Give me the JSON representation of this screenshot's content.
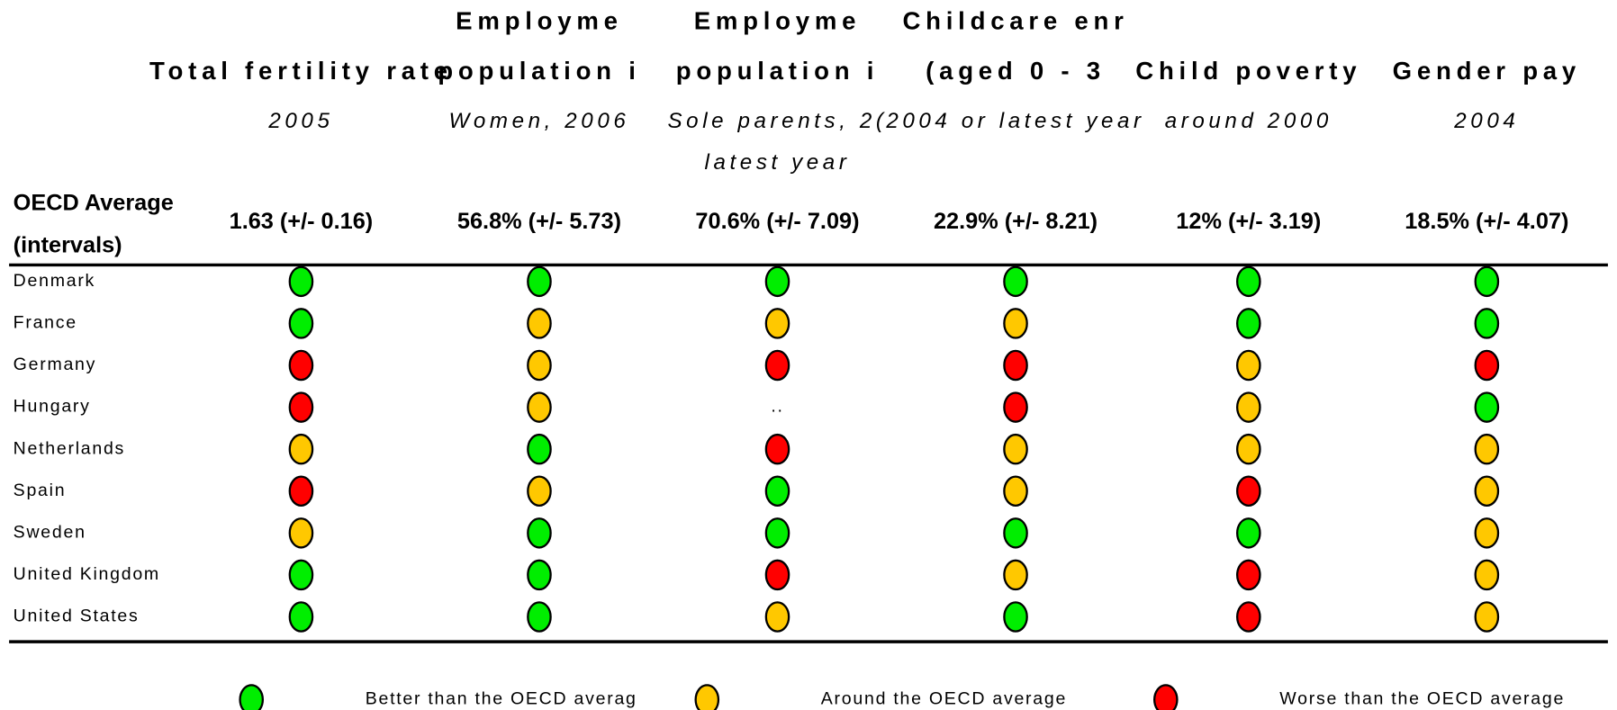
{
  "columns": [
    {
      "title": [
        "Total fertility rate"
      ],
      "subtitle": [
        "2005"
      ],
      "average": "1.63 (+/- 0.16)"
    },
    {
      "title": [
        "Employme",
        "population i"
      ],
      "subtitle": [
        "Women, 2006"
      ],
      "average": "56.8% (+/- 5.73)"
    },
    {
      "title": [
        "Employme",
        "population i"
      ],
      "subtitle": [
        "Sole parents, 2(",
        "latest year"
      ],
      "average": "70.6% (+/- 7.09)"
    },
    {
      "title": [
        "Childcare enr",
        "(aged 0 - 3"
      ],
      "subtitle": [
        "2004 or latest year"
      ],
      "average": "22.9% (+/- 8.21)"
    },
    {
      "title": [
        "Child poverty"
      ],
      "subtitle": [
        "around 2000"
      ],
      "average": "12% (+/- 3.19)"
    },
    {
      "title": [
        "Gender pay"
      ],
      "subtitle": [
        "2004"
      ],
      "average": "18.5% (+/- 4.07)"
    }
  ],
  "row_header": [
    "OECD Average",
    "(intervals)"
  ],
  "rows": [
    {
      "label": "Denmark",
      "cells": [
        "#00ee00",
        "#00ee00",
        "#00ee00",
        "#00ee00",
        "#00ee00",
        "#00ee00"
      ]
    },
    {
      "label": "France",
      "cells": [
        "#00ee00",
        "#ffc800",
        "#ffc800",
        "#ffc800",
        "#00ee00",
        "#00ee00"
      ]
    },
    {
      "label": "Germany",
      "cells": [
        "#ff0000",
        "#ffc800",
        "#ff0000",
        "#ff0000",
        "#ffc800",
        "#ff0000"
      ]
    },
    {
      "label": "Hungary",
      "cells": [
        "#ff0000",
        "#ffc800",
        "..",
        "#ff0000",
        "#ffc800",
        "#00ee00"
      ]
    },
    {
      "label": "Netherlands",
      "cells": [
        "#ffc800",
        "#00ee00",
        "#ff0000",
        "#ffc800",
        "#ffc800",
        "#ffc800"
      ]
    },
    {
      "label": "Spain",
      "cells": [
        "#ff0000",
        "#ffc800",
        "#00ee00",
        "#ffc800",
        "#ff0000",
        "#ffc800"
      ]
    },
    {
      "label": "Sweden",
      "cells": [
        "#ffc800",
        "#00ee00",
        "#00ee00",
        "#00ee00",
        "#00ee00",
        "#ffc800"
      ]
    },
    {
      "label": "United Kingdom",
      "cells": [
        "#00ee00",
        "#00ee00",
        "#ff0000",
        "#ffc800",
        "#ff0000",
        "#ffc800"
      ]
    },
    {
      "label": "United States",
      "cells": [
        "#00ee00",
        "#00ee00",
        "#ffc800",
        "#00ee00",
        "#ff0000",
        "#ffc800"
      ]
    }
  ],
  "legend": [
    {
      "color": "#00ee00",
      "label": "Better than the OECD averag"
    },
    {
      "color": "#ffc800",
      "label": "Around the OECD average"
    },
    {
      "color": "#ff0000",
      "label": "Worse than the OECD average"
    }
  ]
}
